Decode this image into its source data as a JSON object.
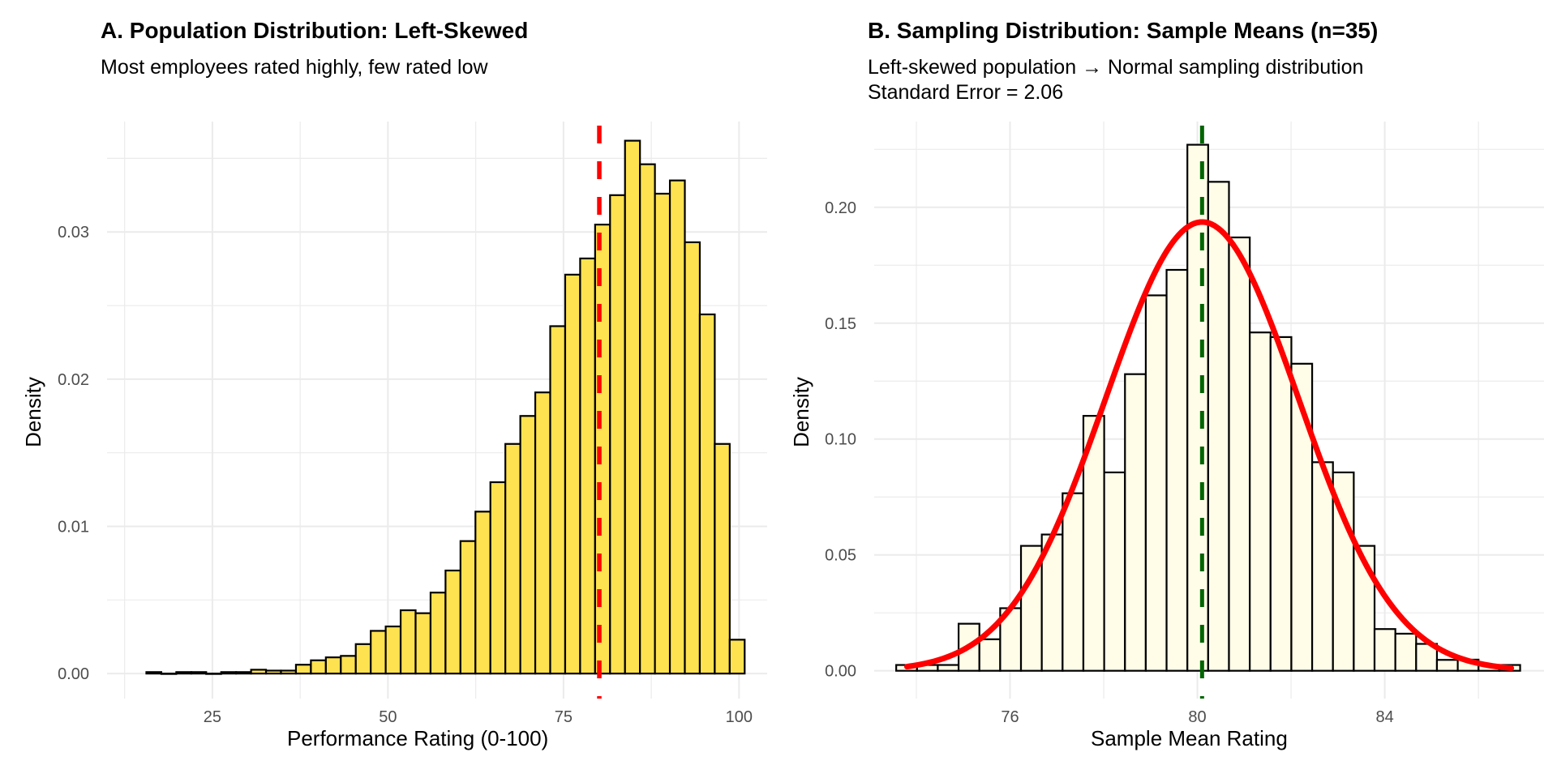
{
  "panels": [
    {
      "title": "A. Population Distribution: Left-Skewed",
      "subtitle_lines": [
        "Most employees rated highly, few rated low"
      ],
      "xlabel": "Performance Rating (0-100)",
      "ylabel": "Density"
    },
    {
      "title": "B. Sampling Distribution: Sample Means (n=35)",
      "subtitle_lines": [
        "Left-skewed population → Normal sampling distribution",
        "Standard Error = 2.06"
      ],
      "xlabel": "Sample Mean Rating",
      "ylabel": "Density"
    }
  ],
  "chart_data": [
    {
      "type": "bar",
      "subtype": "histogram",
      "title": "A. Population Distribution: Left-Skewed",
      "subtitle": "Most employees rated highly, few rated low",
      "xlabel": "Performance Rating (0-100)",
      "ylabel": "Density",
      "xlim": [
        10,
        104
      ],
      "ylim": [
        -0.0017,
        0.0375
      ],
      "xticks": [
        25,
        50,
        75,
        100
      ],
      "yticks": [
        0.0,
        0.01,
        0.02,
        0.03
      ],
      "ytick_labels": [
        "0.00",
        "0.01",
        "0.02",
        "0.03"
      ],
      "grid": true,
      "bin_start": 15.6,
      "bin_width": 2.13,
      "fill_color": "#FFE24F",
      "edge_color": "#000000",
      "values": [
        0.0001,
        0.0,
        0.0001,
        0.0001,
        0.0,
        0.0001,
        0.0001,
        0.00026,
        0.0002,
        0.0002,
        0.0006,
        0.0009,
        0.0011,
        0.0012,
        0.002,
        0.0029,
        0.0032,
        0.0043,
        0.0041,
        0.0055,
        0.007,
        0.009,
        0.011,
        0.013,
        0.0156,
        0.0175,
        0.0191,
        0.0236,
        0.0271,
        0.0282,
        0.0305,
        0.0325,
        0.0362,
        0.0346,
        0.0326,
        0.0335,
        0.0293,
        0.0244,
        0.0156,
        0.0023
      ],
      "mean_line": {
        "x": 80.1,
        "color": "#FF0000",
        "style": "dashed"
      }
    },
    {
      "type": "bar",
      "subtype": "histogram",
      "title": "B. Sampling Distribution: Sample Means (n=35)",
      "subtitle": "Left-skewed population → Normal sampling distribution\nStandard Error = 2.06",
      "xlabel": "Sample Mean Rating",
      "ylabel": "Density",
      "xlim": [
        73.1,
        87.4
      ],
      "ylim": [
        -0.012,
        0.237
      ],
      "xticks": [
        76,
        80,
        84
      ],
      "yticks": [
        0.0,
        0.05,
        0.1,
        0.15,
        0.2
      ],
      "ytick_labels": [
        "0.00",
        "0.05",
        "0.10",
        "0.15",
        "0.20"
      ],
      "grid": true,
      "bin_start": 73.57,
      "bin_width": 0.444,
      "fill_color": "#FFFDE8",
      "edge_color": "#000000",
      "values": [
        0.0025,
        0.0025,
        0.0025,
        0.0203,
        0.0136,
        0.027,
        0.0539,
        0.0588,
        0.0766,
        0.11,
        0.0856,
        0.128,
        0.162,
        0.173,
        0.227,
        0.211,
        0.187,
        0.146,
        0.144,
        0.1325,
        0.09,
        0.0856,
        0.0539,
        0.018,
        0.016,
        0.0116,
        0.0047,
        0.0048,
        0.0025,
        0.0025
      ],
      "normal_curve": {
        "mean": 80.1,
        "sd": 2.06,
        "x_range": [
          73.8,
          86.7
        ],
        "color": "#FF0000"
      },
      "mean_line": {
        "x": 80.1,
        "color": "#006400",
        "style": "dashed"
      }
    }
  ]
}
